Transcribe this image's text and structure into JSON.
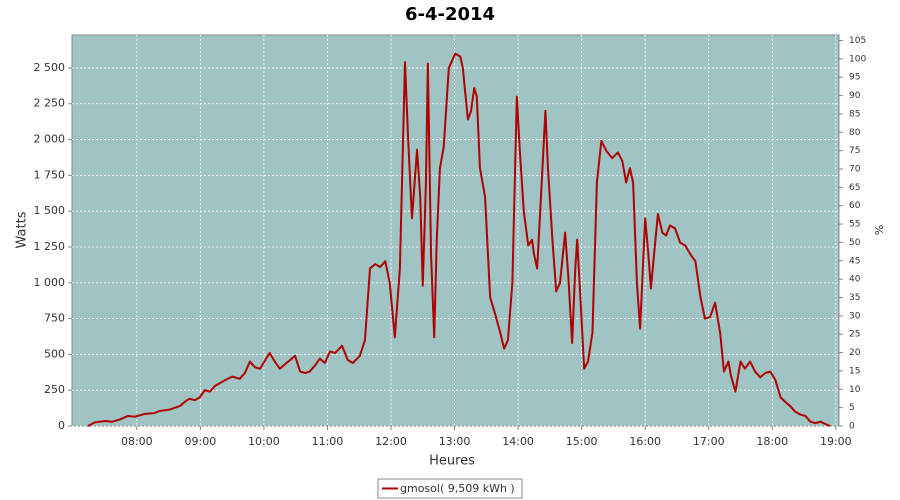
{
  "chart_data": {
    "type": "line",
    "title": "6-4-2014",
    "x_label": "Heures",
    "y_label": "Watts",
    "y2_label": "%",
    "xlim": [
      6.98,
      19.05
    ],
    "xticks": [
      {
        "value": 8,
        "label": "08:00"
      },
      {
        "value": 9,
        "label": "09:00"
      },
      {
        "value": 10,
        "label": "10:00"
      },
      {
        "value": 11,
        "label": "11:00"
      },
      {
        "value": 12,
        "label": "12:00"
      },
      {
        "value": 13,
        "label": "13:00"
      },
      {
        "value": 14,
        "label": "14:00"
      },
      {
        "value": 15,
        "label": "15:00"
      },
      {
        "value": 16,
        "label": "16:00"
      },
      {
        "value": 17,
        "label": "17:00"
      },
      {
        "value": 18,
        "label": "18:00"
      },
      {
        "value": 19,
        "label": "19:00"
      }
    ],
    "ylim": [
      0,
      2730
    ],
    "yticks": [
      0,
      250,
      500,
      750,
      {
        "value": 1000,
        "label": "1 000"
      },
      {
        "value": 1250,
        "label": "1 250"
      },
      {
        "value": 1500,
        "label": "1 500"
      },
      {
        "value": 1750,
        "label": "1 750"
      },
      {
        "value": 2000,
        "label": "2 000"
      },
      {
        "value": 2250,
        "label": "2 250"
      },
      {
        "value": 2500,
        "label": "2 500"
      }
    ],
    "y2lim": [
      0,
      106.5
    ],
    "y2ticks": [
      0,
      5,
      10,
      15,
      20,
      25,
      30,
      35,
      40,
      45,
      50,
      55,
      60,
      65,
      70,
      75,
      80,
      85,
      90,
      95,
      100,
      105
    ],
    "grid": true,
    "background": "#a0c4c4",
    "legend": "bottom",
    "x": [
      7.23,
      7.34,
      7.5,
      7.61,
      7.73,
      7.86,
      7.97,
      8.13,
      8.28,
      8.36,
      8.52,
      8.68,
      8.76,
      8.83,
      8.91,
      8.99,
      9.07,
      9.15,
      9.23,
      9.31,
      9.39,
      9.5,
      9.62,
      9.7,
      9.78,
      9.86,
      9.94,
      10.02,
      10.09,
      10.17,
      10.25,
      10.33,
      10.41,
      10.49,
      10.57,
      10.65,
      10.72,
      10.8,
      10.88,
      10.96,
      11.04,
      11.12,
      11.23,
      11.32,
      11.4,
      11.51,
      11.59,
      11.67,
      11.75,
      11.83,
      11.91,
      11.98,
      12.06,
      12.14,
      12.22,
      12.27,
      12.33,
      12.41,
      12.46,
      12.5,
      12.55,
      12.58,
      12.63,
      12.68,
      12.72,
      12.77,
      12.83,
      12.91,
      13.01,
      13.09,
      13.13,
      13.21,
      13.26,
      13.31,
      13.35,
      13.4,
      13.48,
      13.56,
      13.64,
      13.72,
      13.78,
      13.84,
      13.91,
      13.98,
      14.03,
      14.09,
      14.16,
      14.22,
      14.25,
      14.3,
      14.36,
      14.43,
      14.47,
      14.54,
      14.6,
      14.66,
      14.74,
      14.79,
      14.85,
      14.9,
      14.93,
      14.98,
      15.04,
      15.1,
      15.17,
      15.24,
      15.31,
      15.39,
      15.48,
      15.57,
      15.64,
      15.7,
      15.76,
      15.81,
      15.87,
      15.92,
      16.0,
      16.05,
      16.09,
      16.14,
      16.2,
      16.27,
      16.33,
      16.39,
      16.47,
      16.55,
      16.63,
      16.71,
      16.79,
      16.87,
      16.94,
      17.02,
      17.1,
      17.18,
      17.24,
      17.31,
      17.35,
      17.42,
      17.5,
      17.57,
      17.65,
      17.73,
      17.81,
      17.89,
      17.97,
      18.05,
      18.13,
      18.2,
      18.28,
      18.36,
      18.44,
      18.52,
      18.6,
      18.68,
      18.76,
      18.83,
      18.91
    ],
    "series": [
      {
        "name": "gmosol( 9,509 kWh )",
        "color": "#b00000",
        "axis": "y",
        "values": [
          0,
          25,
          35,
          30,
          45,
          70,
          65,
          85,
          90,
          105,
          115,
          140,
          170,
          190,
          180,
          200,
          250,
          240,
          280,
          300,
          320,
          345,
          330,
          370,
          450,
          410,
          400,
          460,
          510,
          450,
          400,
          430,
          460,
          490,
          380,
          370,
          380,
          420,
          470,
          440,
          520,
          510,
          560,
          460,
          440,
          490,
          600,
          1100,
          1130,
          1110,
          1150,
          1000,
          620,
          1100,
          2540,
          2000,
          1450,
          1930,
          1600,
          980,
          1700,
          2530,
          1200,
          620,
          1300,
          1800,
          1950,
          2500,
          2600,
          2580,
          2500,
          2140,
          2200,
          2360,
          2300,
          1800,
          1600,
          900,
          780,
          650,
          540,
          600,
          1000,
          2300,
          1900,
          1500,
          1260,
          1300,
          1200,
          1100,
          1600,
          2200,
          1800,
          1300,
          940,
          1000,
          1350,
          1050,
          580,
          1100,
          1300,
          900,
          400,
          450,
          650,
          1700,
          1990,
          1920,
          1870,
          1910,
          1850,
          1700,
          1800,
          1700,
          1000,
          680,
          1450,
          1200,
          960,
          1200,
          1480,
          1350,
          1330,
          1400,
          1380,
          1280,
          1260,
          1200,
          1150,
          900,
          750,
          760,
          860,
          650,
          380,
          450,
          350,
          240,
          450,
          400,
          450,
          380,
          340,
          370,
          380,
          320,
          200,
          170,
          140,
          100,
          80,
          70,
          30,
          20,
          30,
          15,
          0
        ]
      }
    ]
  }
}
